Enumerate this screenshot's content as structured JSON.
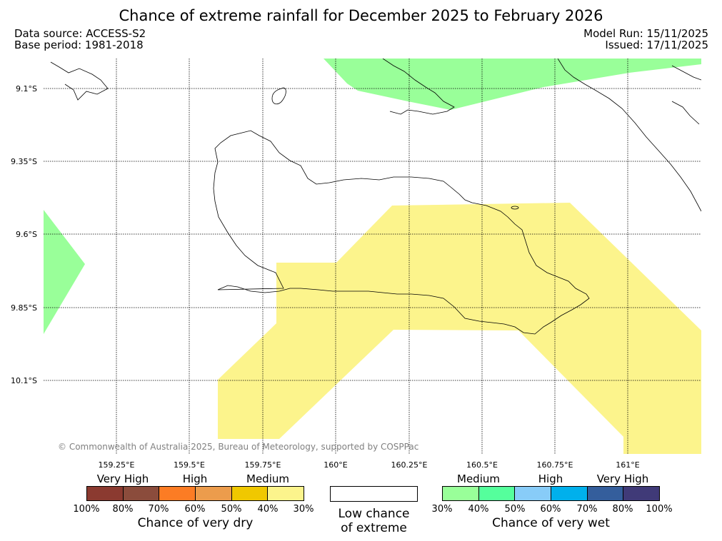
{
  "title": "Chance of extreme rainfall for December 2025 to February 2026",
  "meta": {
    "data_source": "Data source: ACCESS-S2",
    "base_period": "Base period: 1981-2018",
    "model_run": "Model Run: 15/11/2025",
    "issued": "Issued: 17/11/2025"
  },
  "map": {
    "lat_labels": [
      "9.1°S",
      "9.35°S",
      "9.6°S",
      "9.85°S",
      "10.1°S"
    ],
    "lon_labels": [
      "159.25°E",
      "159.5°E",
      "159.75°E",
      "160°E",
      "160.25°E",
      "160.5°E",
      "160.75°E",
      "161°E"
    ],
    "copyright": "© Commonwealth of Australia 2025, Bureau of Meteorology, supported by COSPPac",
    "colors": {
      "wet_medium": "#99ff99",
      "dry_medium": "#fcf48c",
      "coast": "#000000"
    }
  },
  "legend": {
    "dry": {
      "categories": [
        "Very High",
        "High",
        "Medium"
      ],
      "colors": [
        "#8b3a30",
        "#8b4c3c",
        "#fc7c24",
        "#ec9c4c",
        "#f0c800",
        "#fcf48c"
      ],
      "ticks": [
        "100%",
        "80%",
        "70%",
        "60%",
        "50%",
        "40%",
        "30%"
      ],
      "title": "Chance of very dry"
    },
    "low": {
      "line1": "Low chance",
      "line2": "of extreme"
    },
    "wet": {
      "categories": [
        "Medium",
        "High",
        "Very High"
      ],
      "colors": [
        "#99ff99",
        "#55ff9c",
        "#88ccf8",
        "#00b0ec",
        "#345e9c",
        "#403a78"
      ],
      "ticks": [
        "30%",
        "40%",
        "50%",
        "60%",
        "70%",
        "80%",
        "100%"
      ],
      "title": "Chance of very wet"
    }
  }
}
